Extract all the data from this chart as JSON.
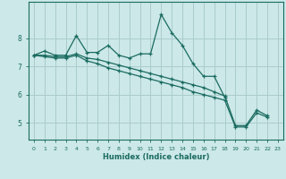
{
  "xlabel": "Humidex (Indice chaleur)",
  "bg_color": "#cce8e8",
  "grid_color": "#aacccc",
  "line_color": "#1a6b60",
  "x_values": [
    0,
    1,
    2,
    3,
    4,
    5,
    6,
    7,
    8,
    9,
    10,
    11,
    12,
    13,
    14,
    15,
    16,
    17,
    18,
    19,
    20,
    21,
    22,
    23
  ],
  "line1": [
    7.4,
    7.55,
    7.4,
    7.4,
    8.1,
    7.5,
    7.5,
    7.75,
    7.4,
    7.3,
    7.45,
    7.45,
    8.85,
    8.2,
    7.75,
    7.1,
    6.65,
    6.65,
    5.9,
    null,
    null,
    null,
    null,
    null
  ],
  "line2": [
    7.4,
    7.4,
    7.35,
    7.35,
    7.45,
    7.3,
    7.25,
    7.15,
    7.05,
    6.95,
    6.85,
    6.75,
    6.65,
    6.55,
    6.45,
    6.35,
    6.25,
    6.1,
    5.95,
    4.9,
    4.9,
    5.45,
    5.25,
    null
  ],
  "line3": [
    7.4,
    7.35,
    7.3,
    7.3,
    7.4,
    7.2,
    7.1,
    6.95,
    6.85,
    6.75,
    6.65,
    6.55,
    6.45,
    6.35,
    6.25,
    6.1,
    6.0,
    5.9,
    5.8,
    4.85,
    4.85,
    5.35,
    5.2,
    null
  ],
  "ylim": [
    4.4,
    9.3
  ],
  "yticks": [
    5,
    6,
    7,
    8
  ],
  "xticks": [
    0,
    1,
    2,
    3,
    4,
    5,
    6,
    7,
    8,
    9,
    10,
    11,
    12,
    13,
    14,
    15,
    16,
    17,
    18,
    19,
    20,
    21,
    22,
    23
  ]
}
